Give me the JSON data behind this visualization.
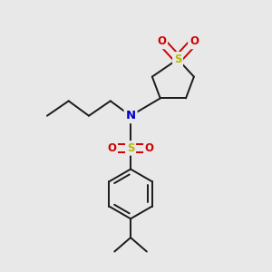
{
  "bg_color": "#e8e8e8",
  "bond_color": "#1a1a1a",
  "S_color": "#b8b800",
  "N_color": "#0000cc",
  "O_color": "#cc0000",
  "line_width": 1.4,
  "figsize": [
    3.0,
    3.0
  ],
  "dpi": 100,
  "xlim": [
    0,
    10
  ],
  "ylim": [
    0,
    10
  ]
}
